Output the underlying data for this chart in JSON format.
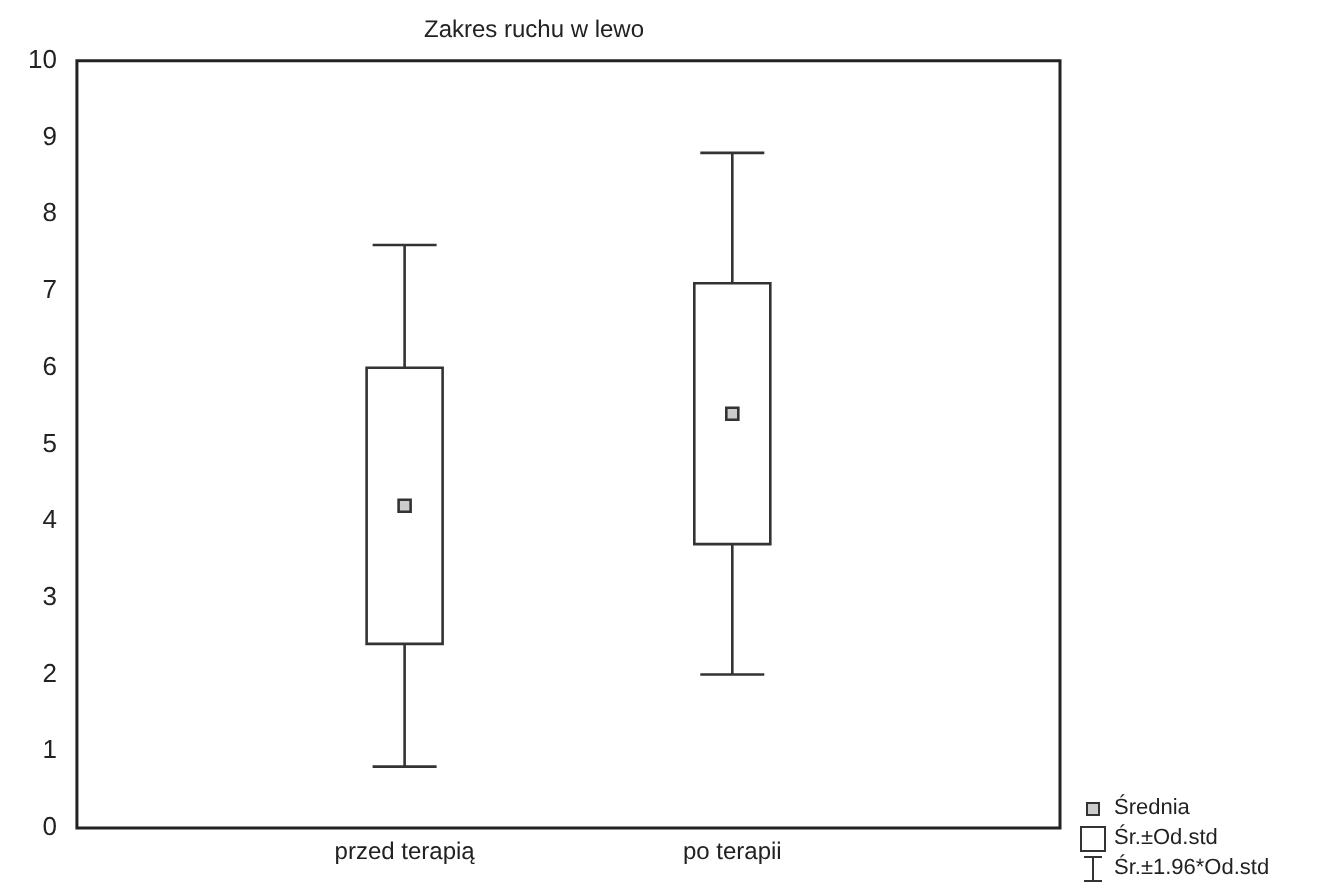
{
  "chart_data": {
    "type": "box",
    "title": "Zakres ruchu w lewo",
    "categories": [
      "przed terapią",
      "po terapii"
    ],
    "boxes": [
      {
        "low": 0.8,
        "q1": 2.4,
        "mean": 4.2,
        "q3": 6.0,
        "high": 7.6
      },
      {
        "low": 2.0,
        "q1": 3.7,
        "mean": 5.4,
        "q3": 7.1,
        "high": 8.8
      }
    ],
    "ylim": [
      0,
      10
    ],
    "yticks": [
      0,
      1,
      2,
      3,
      4,
      5,
      6,
      7,
      8,
      9,
      10
    ],
    "grid": false,
    "annotations": [
      "Średnia",
      "Śr.±Od.std",
      "Śr.±1.96*Od.std"
    ]
  }
}
